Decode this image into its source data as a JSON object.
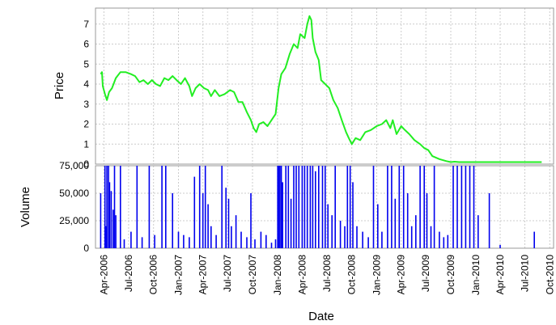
{
  "chart_data": [
    {
      "type": "line",
      "ylabel": "Price",
      "xlabel": "",
      "ylim": [
        0,
        7.8
      ],
      "yticks": [
        0,
        1,
        2,
        3,
        4,
        5,
        6,
        7
      ],
      "grid": true,
      "x_range": [
        "2006-03-01",
        "2010-10-15"
      ],
      "series": [
        {
          "color": "#22ee22",
          "points": [
            [
              "2006-03-20",
              4.5
            ],
            [
              "2006-03-25",
              4.6
            ],
            [
              "2006-03-28",
              3.9
            ],
            [
              "2006-04-05",
              3.5
            ],
            [
              "2006-04-12",
              3.2
            ],
            [
              "2006-04-20",
              3.6
            ],
            [
              "2006-05-01",
              3.8
            ],
            [
              "2006-05-15",
              4.3
            ],
            [
              "2006-06-01",
              4.6
            ],
            [
              "2006-06-20",
              4.6
            ],
            [
              "2006-07-10",
              4.5
            ],
            [
              "2006-07-25",
              4.4
            ],
            [
              "2006-08-10",
              4.1
            ],
            [
              "2006-08-25",
              4.2
            ],
            [
              "2006-09-10",
              4.0
            ],
            [
              "2006-09-25",
              4.2
            ],
            [
              "2006-10-10",
              4.0
            ],
            [
              "2006-10-25",
              3.9
            ],
            [
              "2006-11-10",
              4.3
            ],
            [
              "2006-11-25",
              4.2
            ],
            [
              "2006-12-10",
              4.4
            ],
            [
              "2006-12-25",
              4.2
            ],
            [
              "2007-01-10",
              4.0
            ],
            [
              "2007-01-25",
              4.3
            ],
            [
              "2007-02-10",
              3.9
            ],
            [
              "2007-02-20",
              3.4
            ],
            [
              "2007-03-05",
              3.8
            ],
            [
              "2007-03-20",
              4.0
            ],
            [
              "2007-04-05",
              3.8
            ],
            [
              "2007-04-20",
              3.7
            ],
            [
              "2007-05-01",
              3.4
            ],
            [
              "2007-05-15",
              3.7
            ],
            [
              "2007-06-01",
              3.4
            ],
            [
              "2007-06-20",
              3.5
            ],
            [
              "2007-07-10",
              3.7
            ],
            [
              "2007-07-25",
              3.6
            ],
            [
              "2007-08-10",
              3.1
            ],
            [
              "2007-08-25",
              3.1
            ],
            [
              "2007-09-10",
              2.6
            ],
            [
              "2007-09-25",
              2.2
            ],
            [
              "2007-10-05",
              1.8
            ],
            [
              "2007-10-15",
              1.6
            ],
            [
              "2007-10-25",
              2.0
            ],
            [
              "2007-11-10",
              2.1
            ],
            [
              "2007-11-25",
              1.9
            ],
            [
              "2007-12-10",
              2.2
            ],
            [
              "2007-12-25",
              2.5
            ],
            [
              "2008-01-05",
              3.8
            ],
            [
              "2008-01-15",
              4.5
            ],
            [
              "2008-01-30",
              4.8
            ],
            [
              "2008-02-15",
              5.5
            ],
            [
              "2008-03-01",
              6.0
            ],
            [
              "2008-03-15",
              5.8
            ],
            [
              "2008-03-25",
              6.5
            ],
            [
              "2008-04-10",
              6.3
            ],
            [
              "2008-04-20",
              7.0
            ],
            [
              "2008-04-28",
              7.4
            ],
            [
              "2008-05-05",
              7.2
            ],
            [
              "2008-05-10",
              6.3
            ],
            [
              "2008-05-20",
              5.6
            ],
            [
              "2008-06-01",
              5.2
            ],
            [
              "2008-06-10",
              4.2
            ],
            [
              "2008-06-25",
              4.0
            ],
            [
              "2008-07-10",
              3.8
            ],
            [
              "2008-07-25",
              3.2
            ],
            [
              "2008-08-10",
              2.8
            ],
            [
              "2008-08-25",
              2.2
            ],
            [
              "2008-09-10",
              1.6
            ],
            [
              "2008-09-20",
              1.3
            ],
            [
              "2008-10-01",
              1.0
            ],
            [
              "2008-10-15",
              1.3
            ],
            [
              "2008-11-01",
              1.2
            ],
            [
              "2008-11-20",
              1.6
            ],
            [
              "2008-12-10",
              1.7
            ],
            [
              "2009-01-01",
              1.9
            ],
            [
              "2009-01-20",
              2.0
            ],
            [
              "2009-02-05",
              2.2
            ],
            [
              "2009-02-20",
              1.8
            ],
            [
              "2009-03-01",
              2.2
            ],
            [
              "2009-03-15",
              1.5
            ],
            [
              "2009-04-01",
              1.9
            ],
            [
              "2009-04-15",
              1.7
            ],
            [
              "2009-05-01",
              1.5
            ],
            [
              "2009-05-20",
              1.2
            ],
            [
              "2009-06-10",
              1.0
            ],
            [
              "2009-06-25",
              0.8
            ],
            [
              "2009-07-10",
              0.7
            ],
            [
              "2009-07-25",
              0.4
            ],
            [
              "2009-08-20",
              0.25
            ],
            [
              "2009-09-15",
              0.15
            ],
            [
              "2009-10-01",
              0.1
            ],
            [
              "2009-10-15",
              0.12
            ],
            [
              "2009-11-01",
              0.1
            ],
            [
              "2010-01-01",
              0.1
            ],
            [
              "2010-04-01",
              0.1
            ],
            [
              "2010-07-01",
              0.1
            ],
            [
              "2010-09-01",
              0.1
            ]
          ]
        }
      ]
    },
    {
      "type": "bar",
      "ylabel": "Volume",
      "xlabel": "Date",
      "ylim": [
        0,
        75000
      ],
      "yticks": [
        0,
        25000,
        50000,
        75000
      ],
      "ytick_labels": [
        "0",
        "25,000",
        "50,000",
        "75,000"
      ],
      "grid": true,
      "x_range": [
        "2006-03-01",
        "2010-10-15"
      ],
      "xticks": [
        "2006-04-01",
        "2006-07-01",
        "2006-10-01",
        "2007-01-01",
        "2007-04-01",
        "2007-07-01",
        "2007-10-01",
        "2008-01-01",
        "2008-04-01",
        "2008-07-01",
        "2008-10-01",
        "2009-01-01",
        "2009-04-01",
        "2009-07-01",
        "2009-10-01",
        "2010-01-01",
        "2010-04-01",
        "2010-07-01",
        "2010-10-01"
      ],
      "xtick_labels": [
        "Apr-2006",
        "Jul-2006",
        "Oct-2006",
        "Jan-2007",
        "Apr-2007",
        "Jul-2007",
        "Oct-2007",
        "Jan-2008",
        "Apr-2008",
        "Jul-2008",
        "Oct-2008",
        "Jan-2009",
        "Apr-2009",
        "Jul-2009",
        "Oct-2009",
        "Jan-2010",
        "Apr-2010",
        "Jul-2010",
        "Oct-2010"
      ],
      "series": [
        {
          "color": "#0000ee",
          "points": [
            [
              "2006-03-20",
              50000
            ],
            [
              "2006-04-05",
              75000
            ],
            [
              "2006-04-08",
              20000
            ],
            [
              "2006-04-12",
              75000
            ],
            [
              "2006-04-18",
              75000
            ],
            [
              "2006-04-22",
              60000
            ],
            [
              "2006-04-28",
              52000
            ],
            [
              "2006-05-05",
              35000
            ],
            [
              "2006-05-10",
              75000
            ],
            [
              "2006-05-15",
              30000
            ],
            [
              "2006-06-01",
              75000
            ],
            [
              "2006-06-15",
              8000
            ],
            [
              "2006-07-10",
              15000
            ],
            [
              "2006-08-01",
              75000
            ],
            [
              "2006-08-20",
              10000
            ],
            [
              "2006-09-15",
              75000
            ],
            [
              "2006-10-05",
              12000
            ],
            [
              "2006-11-01",
              75000
            ],
            [
              "2006-11-15",
              75000
            ],
            [
              "2006-12-10",
              50000
            ],
            [
              "2007-01-01",
              15000
            ],
            [
              "2007-01-20",
              12000
            ],
            [
              "2007-02-10",
              10000
            ],
            [
              "2007-03-01",
              65000
            ],
            [
              "2007-03-20",
              75000
            ],
            [
              "2007-04-01",
              50000
            ],
            [
              "2007-04-10",
              75000
            ],
            [
              "2007-04-20",
              40000
            ],
            [
              "2007-05-01",
              20000
            ],
            [
              "2007-05-20",
              12000
            ],
            [
              "2007-06-10",
              75000
            ],
            [
              "2007-06-25",
              55000
            ],
            [
              "2007-07-05",
              45000
            ],
            [
              "2007-07-15",
              20000
            ],
            [
              "2007-08-01",
              30000
            ],
            [
              "2007-08-20",
              15000
            ],
            [
              "2007-09-10",
              10000
            ],
            [
              "2007-09-25",
              50000
            ],
            [
              "2007-10-10",
              8000
            ],
            [
              "2007-11-01",
              15000
            ],
            [
              "2007-11-20",
              12000
            ],
            [
              "2007-12-10",
              5000
            ],
            [
              "2007-12-25",
              8000
            ],
            [
              "2008-01-02",
              75000
            ],
            [
              "2008-01-06",
              75000
            ],
            [
              "2008-01-10",
              75000
            ],
            [
              "2008-01-15",
              75000
            ],
            [
              "2008-01-20",
              60000
            ],
            [
              "2008-02-01",
              75000
            ],
            [
              "2008-02-10",
              75000
            ],
            [
              "2008-02-20",
              45000
            ],
            [
              "2008-03-01",
              75000
            ],
            [
              "2008-03-10",
              75000
            ],
            [
              "2008-03-20",
              75000
            ],
            [
              "2008-04-01",
              75000
            ],
            [
              "2008-04-10",
              75000
            ],
            [
              "2008-04-20",
              75000
            ],
            [
              "2008-05-01",
              75000
            ],
            [
              "2008-05-10",
              75000
            ],
            [
              "2008-05-20",
              70000
            ],
            [
              "2008-06-01",
              75000
            ],
            [
              "2008-06-15",
              75000
            ],
            [
              "2008-06-25",
              75000
            ],
            [
              "2008-07-05",
              40000
            ],
            [
              "2008-07-20",
              30000
            ],
            [
              "2008-08-01",
              75000
            ],
            [
              "2008-08-20",
              25000
            ],
            [
              "2008-09-05",
              20000
            ],
            [
              "2008-09-15",
              75000
            ],
            [
              "2008-09-25",
              75000
            ],
            [
              "2008-10-05",
              60000
            ],
            [
              "2008-10-20",
              20000
            ],
            [
              "2008-11-10",
              15000
            ],
            [
              "2008-12-01",
              10000
            ],
            [
              "2008-12-20",
              75000
            ],
            [
              "2009-01-05",
              40000
            ],
            [
              "2009-01-20",
              15000
            ],
            [
              "2009-02-10",
              75000
            ],
            [
              "2009-02-25",
              75000
            ],
            [
              "2009-03-10",
              45000
            ],
            [
              "2009-03-25",
              75000
            ],
            [
              "2009-04-10",
              75000
            ],
            [
              "2009-04-25",
              50000
            ],
            [
              "2009-05-10",
              20000
            ],
            [
              "2009-05-25",
              30000
            ],
            [
              "2009-06-10",
              75000
            ],
            [
              "2009-06-25",
              75000
            ],
            [
              "2009-07-05",
              50000
            ],
            [
              "2009-07-20",
              20000
            ],
            [
              "2009-08-01",
              75000
            ],
            [
              "2009-08-20",
              15000
            ],
            [
              "2009-09-05",
              10000
            ],
            [
              "2009-09-20",
              12000
            ],
            [
              "2009-10-10",
              75000
            ],
            [
              "2009-10-25",
              75000
            ],
            [
              "2009-11-10",
              75000
            ],
            [
              "2009-11-25",
              75000
            ],
            [
              "2009-12-10",
              75000
            ],
            [
              "2009-12-25",
              75000
            ],
            [
              "2010-01-10",
              30000
            ],
            [
              "2010-02-20",
              50000
            ],
            [
              "2010-04-01",
              3000
            ],
            [
              "2010-08-05",
              15000
            ]
          ]
        }
      ]
    }
  ]
}
